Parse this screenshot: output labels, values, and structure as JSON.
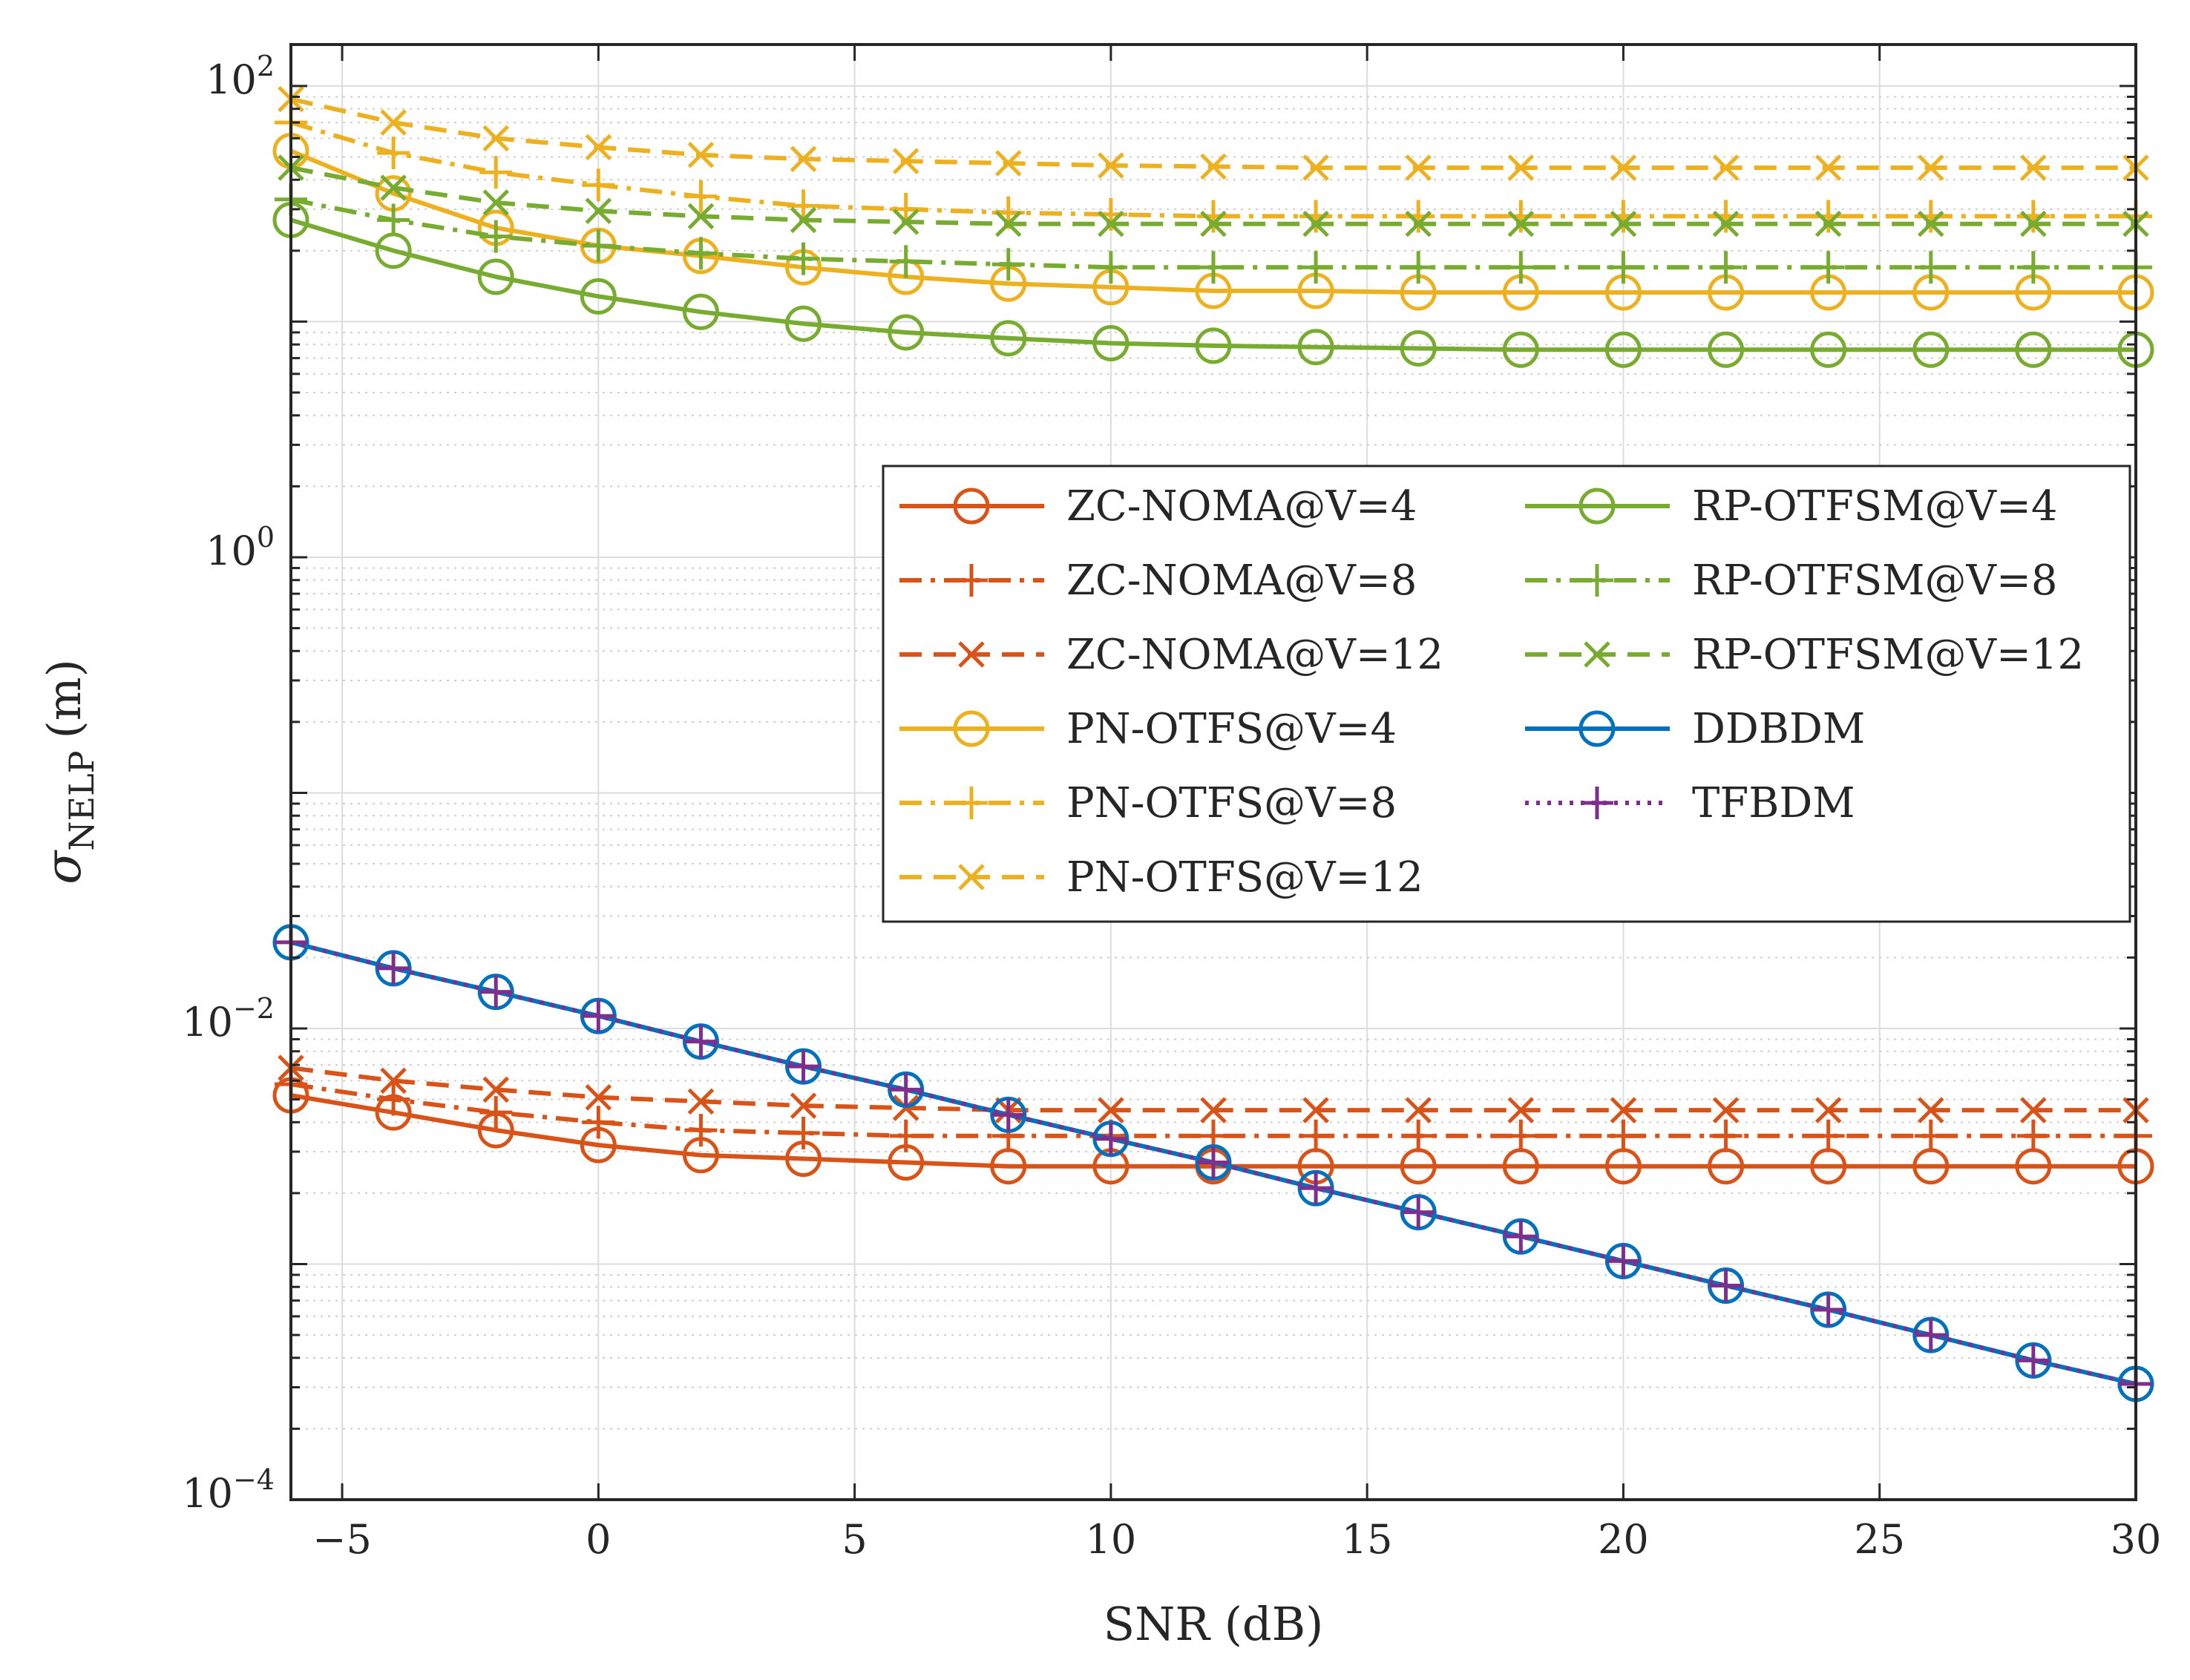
{
  "chart_data": {
    "type": "line",
    "xscale": "linear",
    "yscale": "log",
    "xlabel": "SNR (dB)",
    "ylabel": {
      "symbol": "σ",
      "subscript": "NELP",
      "unit": "(m)"
    },
    "xlim": [
      -6,
      30
    ],
    "ylim": [
      0.0001,
      150
    ],
    "x_ticks": [
      -5,
      0,
      5,
      10,
      15,
      20,
      25,
      30
    ],
    "x_tick_labels": [
      "−5",
      "0",
      "5",
      "10",
      "15",
      "20",
      "25",
      "30"
    ],
    "y_ticks": [
      {
        "value": 0.0001,
        "base": "10",
        "exp": "−4"
      },
      {
        "value": 0.01,
        "base": "10",
        "exp": "−2"
      },
      {
        "value": 1,
        "base": "10",
        "exp": "0"
      },
      {
        "value": 100,
        "base": "10",
        "exp": "2"
      }
    ],
    "grid": true,
    "legend_position": "right-middle",
    "colors": {
      "red": "#D95319",
      "yellow": "#EDB120",
      "green": "#77AC30",
      "blue": "#0072BD",
      "purple": "#7E2F8E"
    },
    "x": [
      -6,
      -4,
      -2,
      0,
      2,
      4,
      6,
      8,
      10,
      12,
      14,
      16,
      18,
      20,
      22,
      24,
      26,
      28,
      30
    ],
    "series": [
      {
        "name": "ZC-NOMA@V=4",
        "color": "#D95319",
        "line": "solid",
        "marker": "circle",
        "values": [
          0.0052,
          0.0044,
          0.0037,
          0.0032,
          0.0029,
          0.0028,
          0.0027,
          0.0026,
          0.0026,
          0.0026,
          0.0026,
          0.0026,
          0.0026,
          0.0026,
          0.0026,
          0.0026,
          0.0026,
          0.0026,
          0.0026
        ]
      },
      {
        "name": "ZC-NOMA@V=8",
        "color": "#D95319",
        "line": "dashdot",
        "marker": "plus",
        "values": [
          0.0058,
          0.005,
          0.0044,
          0.004,
          0.0037,
          0.0036,
          0.0035,
          0.0035,
          0.0035,
          0.0035,
          0.0035,
          0.0035,
          0.0035,
          0.0035,
          0.0035,
          0.0035,
          0.0035,
          0.0035,
          0.0035
        ]
      },
      {
        "name": "ZC-NOMA@V=12",
        "color": "#D95319",
        "line": "dashed",
        "marker": "x",
        "values": [
          0.0068,
          0.006,
          0.0055,
          0.0051,
          0.0049,
          0.0047,
          0.0046,
          0.0045,
          0.0045,
          0.0045,
          0.0045,
          0.0045,
          0.0045,
          0.0045,
          0.0045,
          0.0045,
          0.0045,
          0.0045,
          0.0045
        ]
      },
      {
        "name": "PN-OTFS@V=4",
        "color": "#EDB120",
        "line": "solid",
        "marker": "circle",
        "values": [
          53,
          35,
          25,
          21,
          19,
          17,
          15.5,
          14.5,
          14,
          13.5,
          13.5,
          13.3,
          13.3,
          13.3,
          13.3,
          13.3,
          13.3,
          13.3,
          13.3
        ]
      },
      {
        "name": "PN-OTFS@V=8",
        "color": "#EDB120",
        "line": "dashdot",
        "marker": "plus",
        "values": [
          70,
          52,
          43,
          38,
          34,
          31,
          30,
          29,
          28.5,
          28,
          28,
          28,
          28,
          28,
          28,
          28,
          28,
          28,
          28
        ]
      },
      {
        "name": "PN-OTFS@V=12",
        "color": "#EDB120",
        "line": "dashed",
        "marker": "x",
        "values": [
          88,
          70,
          60,
          55,
          51,
          49,
          48,
          47,
          46,
          45.5,
          45,
          45,
          45,
          45,
          45,
          45,
          45,
          45,
          45
        ]
      },
      {
        "name": "RP-OTFSM@V=4",
        "color": "#77AC30",
        "line": "solid",
        "marker": "circle",
        "values": [
          27,
          20,
          15.5,
          12.8,
          11,
          9.8,
          9,
          8.5,
          8.1,
          7.9,
          7.8,
          7.7,
          7.6,
          7.6,
          7.6,
          7.6,
          7.6,
          7.6,
          7.6
        ]
      },
      {
        "name": "RP-OTFSM@V=8",
        "color": "#77AC30",
        "line": "dashdot",
        "marker": "plus",
        "values": [
          33,
          27,
          23,
          21,
          19.5,
          18.5,
          18,
          17.5,
          17,
          17,
          17,
          17,
          17,
          17,
          17,
          17,
          17,
          17,
          17
        ]
      },
      {
        "name": "RP-OTFSM@V=12",
        "color": "#77AC30",
        "line": "dashed",
        "marker": "x",
        "values": [
          45,
          37,
          32,
          29.5,
          28,
          27,
          26.5,
          26,
          26,
          26,
          26,
          26,
          26,
          26,
          26,
          26,
          26,
          26,
          26
        ]
      },
      {
        "name": "DDBDM",
        "color": "#0072BD",
        "line": "solid",
        "marker": "circle",
        "values": [
          0.0232,
          0.018,
          0.0143,
          0.0113,
          0.0088,
          0.0069,
          0.0055,
          0.0043,
          0.0034,
          0.0027,
          0.0021,
          0.00166,
          0.00131,
          0.00103,
          0.00081,
          0.00064,
          0.0005,
          0.00039,
          0.00031
        ]
      },
      {
        "name": "TFBDM",
        "color": "#7E2F8E",
        "line": "dotted",
        "marker": "plus",
        "values": [
          0.0232,
          0.018,
          0.0143,
          0.0113,
          0.0088,
          0.0069,
          0.0055,
          0.0043,
          0.0034,
          0.0027,
          0.0021,
          0.00166,
          0.00131,
          0.00103,
          0.00081,
          0.00064,
          0.0005,
          0.00039,
          0.00031
        ]
      }
    ]
  }
}
